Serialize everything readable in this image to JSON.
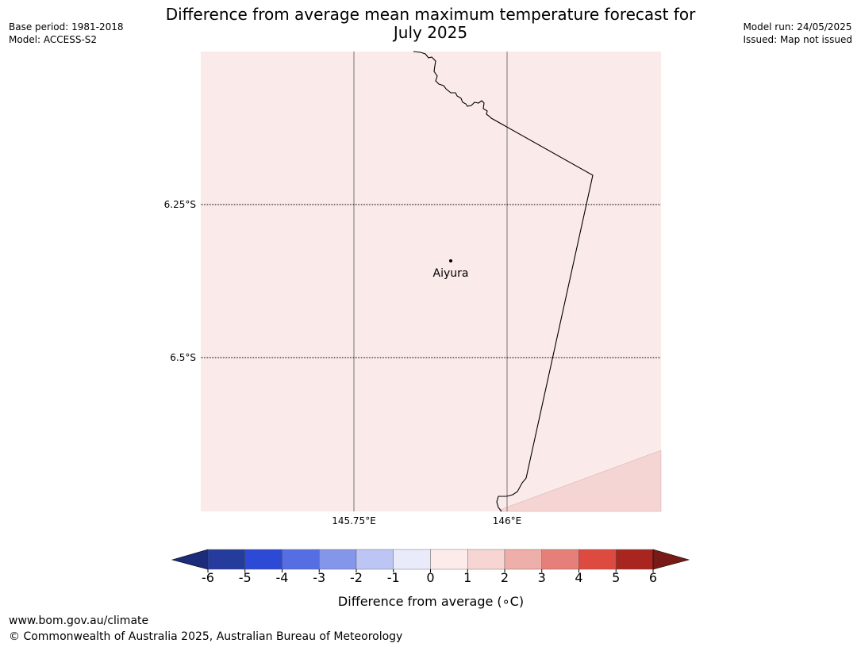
{
  "header": {
    "base_period": "Base period: 1981-2018",
    "model": "Model: ACCESS-S2",
    "model_run": "Model run: 24/05/2025",
    "issued": "Issued: Map not issued",
    "title_line1": "Difference from average mean maximum temperature forecast for",
    "title_line2": "July 2025"
  },
  "map": {
    "lat_labels": [
      "6.25°S",
      "6.5°S"
    ],
    "lon_labels": [
      "145.75°E",
      "146°E"
    ],
    "place": {
      "name": "Aiyura"
    },
    "fill_colors": {
      "background": "#faeae9",
      "warmer_zone": "#f4d5d3"
    }
  },
  "colorbar": {
    "label": "Difference from average (∘C)",
    "ticks": [
      "-6",
      "-5",
      "-4",
      "-3",
      "-2",
      "-1",
      "0",
      "1",
      "2",
      "3",
      "4",
      "5",
      "6"
    ],
    "colors": [
      "#263c9c",
      "#2d4ad6",
      "#566ee3",
      "#8496ea",
      "#bcc5f3",
      "#e9ebfb",
      "#fcebea",
      "#f7d5d3",
      "#eeaea9",
      "#e57f79",
      "#dd4a3f",
      "#a8261f"
    ],
    "low_extend": "#1c2b7a",
    "high_extend": "#781b17"
  },
  "footer": {
    "url": "www.bom.gov.au/climate",
    "copyright": "© Commonwealth of Australia 2025, Australian Bureau of Meteorology"
  }
}
